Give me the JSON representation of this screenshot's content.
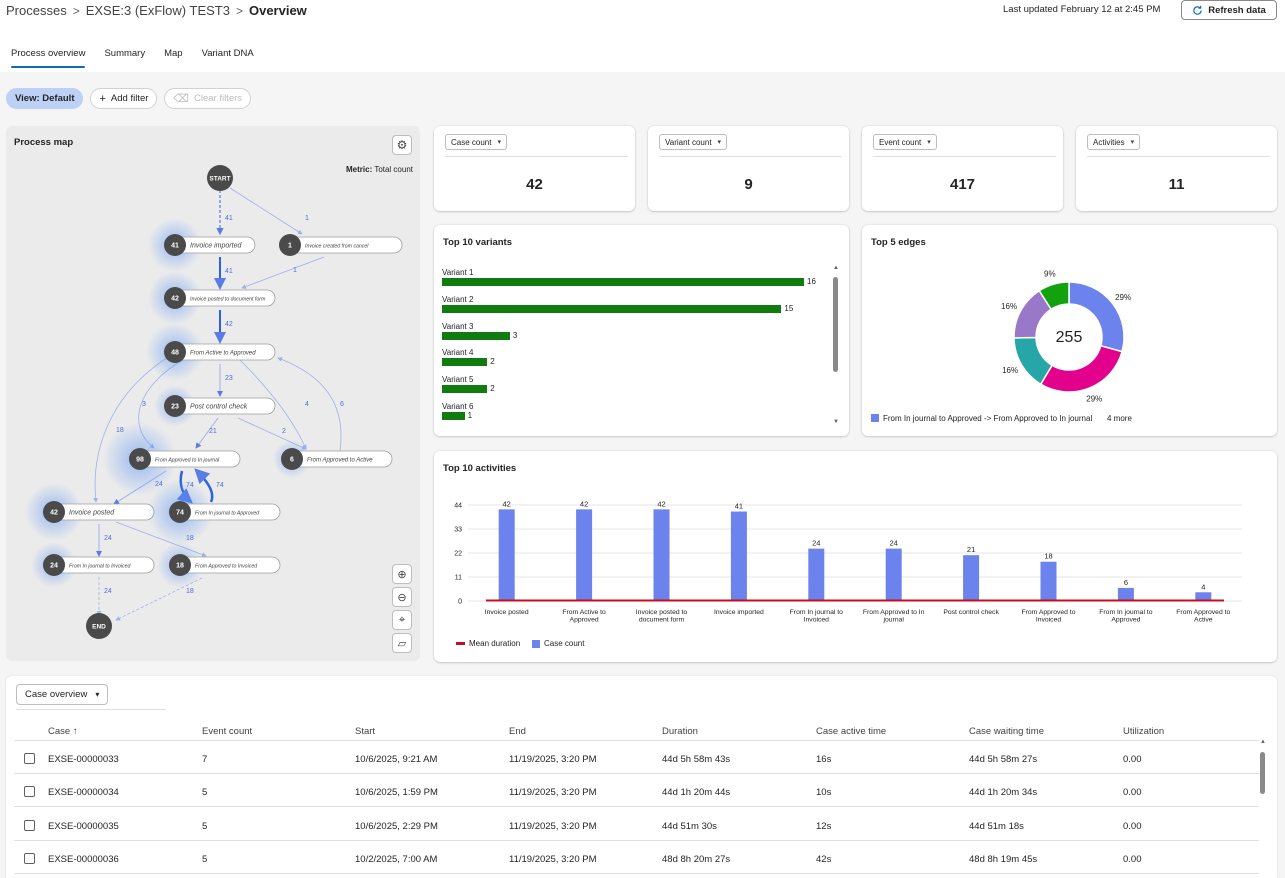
{
  "breadcrumb": {
    "root": "Processes",
    "process": "EXSE:3 (ExFlow) TEST3",
    "current": "Overview"
  },
  "header": {
    "last_updated": "Last updated February 12 at 2:45 PM",
    "refresh_label": "Refresh data"
  },
  "tabs": [
    {
      "label": "Process overview",
      "active": true
    },
    {
      "label": "Summary",
      "active": false
    },
    {
      "label": "Map",
      "active": false
    },
    {
      "label": "Variant DNA",
      "active": false
    }
  ],
  "filters": {
    "view": "View: Default",
    "add": "Add filter",
    "clear": "Clear filters"
  },
  "process_map": {
    "title": "Process map",
    "metric_label": "Metric:",
    "metric_value": "Total count",
    "start_label": "START",
    "end_label": "END",
    "nodes": [
      {
        "count": "41",
        "label": "Invoice imported"
      },
      {
        "count": "1",
        "label": "Invoice created from cancel"
      },
      {
        "count": "42",
        "label": "Invoice posted to document form"
      },
      {
        "count": "48",
        "label": "From Active to Approved"
      },
      {
        "count": "23",
        "label": "Post control check"
      },
      {
        "count": "98",
        "label": "From Approved to In journal"
      },
      {
        "count": "6",
        "label": "From Approved to Active"
      },
      {
        "count": "42",
        "label": "Invoice posted"
      },
      {
        "count": "74",
        "label": "From In journal to Approved"
      },
      {
        "count": "24",
        "label": "From In journal to Invoiced"
      },
      {
        "count": "18",
        "label": "From Approved to Invoiced"
      }
    ],
    "edge_labels": [
      "41",
      "1",
      "41",
      "1",
      "42",
      "23",
      "3",
      "4",
      "6",
      "18",
      "21",
      "2",
      "24",
      "74",
      "74",
      "24",
      "18",
      "24",
      "18"
    ]
  },
  "kpis": [
    {
      "label": "Case count",
      "value": "42"
    },
    {
      "label": "Variant count",
      "value": "9"
    },
    {
      "label": "Event count",
      "value": "417"
    },
    {
      "label": "Activities",
      "value": "11"
    }
  ],
  "top_variants": {
    "title": "Top 10 variants",
    "color": "#107c10",
    "items": [
      {
        "label": "Variant 1",
        "value": 16
      },
      {
        "label": "Variant 2",
        "value": 15
      },
      {
        "label": "Variant 3",
        "value": 3
      },
      {
        "label": "Variant 4",
        "value": 2
      },
      {
        "label": "Variant 5",
        "value": 2
      },
      {
        "label": "Variant 6",
        "value": 1
      }
    ]
  },
  "top_edges": {
    "title": "Top 5 edges",
    "total": "255",
    "slices": [
      {
        "pct": 29,
        "label": "29%",
        "color": "#6c82ec"
      },
      {
        "pct": 29,
        "label": "29%",
        "color": "#e3008c"
      },
      {
        "pct": 16,
        "label": "16%",
        "color": "#26a6a6"
      },
      {
        "pct": 16,
        "label": "16%",
        "color": "#9a78c9"
      },
      {
        "pct": 9,
        "label": "9%",
        "color": "#13a10e"
      }
    ],
    "legend": "From In journal to Approved -> From Approved to In journal",
    "more": "4 more"
  },
  "chart_data": {
    "type": "bar",
    "title": "Top 10 activities",
    "categories": [
      "Invoice posted",
      "From Active to Approved",
      "Invoice posted to document form",
      "Invoice imported",
      "From In journal to Invoiced",
      "From Approved to In journal",
      "Post control check",
      "From Approved to Invoiced",
      "From In journal to Approved",
      "From Approved to Active"
    ],
    "series": [
      {
        "name": "Case count",
        "values": [
          42,
          42,
          42,
          41,
          24,
          24,
          21,
          18,
          6,
          4
        ],
        "color": "#6c82ec"
      },
      {
        "name": "Mean duration",
        "values": [
          0,
          0,
          0,
          0,
          0,
          0,
          0,
          0,
          0,
          0
        ],
        "color": "#c50f1f"
      }
    ],
    "yticks": [
      "0",
      "11",
      "22",
      "33",
      "44"
    ],
    "ylim": [
      0,
      44
    ]
  },
  "case_table": {
    "selector": "Case overview",
    "columns": [
      "Case ↑",
      "Event count",
      "Start",
      "End",
      "Duration",
      "Case active time",
      "Case waiting time",
      "Utilization"
    ],
    "rows": [
      [
        "EXSE-00000033",
        "7",
        "10/6/2025, 9:21 AM",
        "11/19/2025, 3:20 PM",
        "44d 5h 58m 43s",
        "16s",
        "44d 5h 58m 27s",
        "0.00"
      ],
      [
        "EXSE-00000034",
        "5",
        "10/6/2025, 1:59 PM",
        "11/19/2025, 3:20 PM",
        "44d 1h 20m 44s",
        "10s",
        "44d 1h 20m 34s",
        "0.00"
      ],
      [
        "EXSE-00000035",
        "5",
        "10/6/2025, 2:29 PM",
        "11/19/2025, 3:20 PM",
        "44d 51m 30s",
        "12s",
        "44d 51m 18s",
        "0.00"
      ],
      [
        "EXSE-00000036",
        "5",
        "10/2/2025, 7:00 AM",
        "11/19/2025, 3:20 PM",
        "48d 8h 20m 27s",
        "42s",
        "48d 8h 19m 45s",
        "0.00"
      ]
    ]
  }
}
